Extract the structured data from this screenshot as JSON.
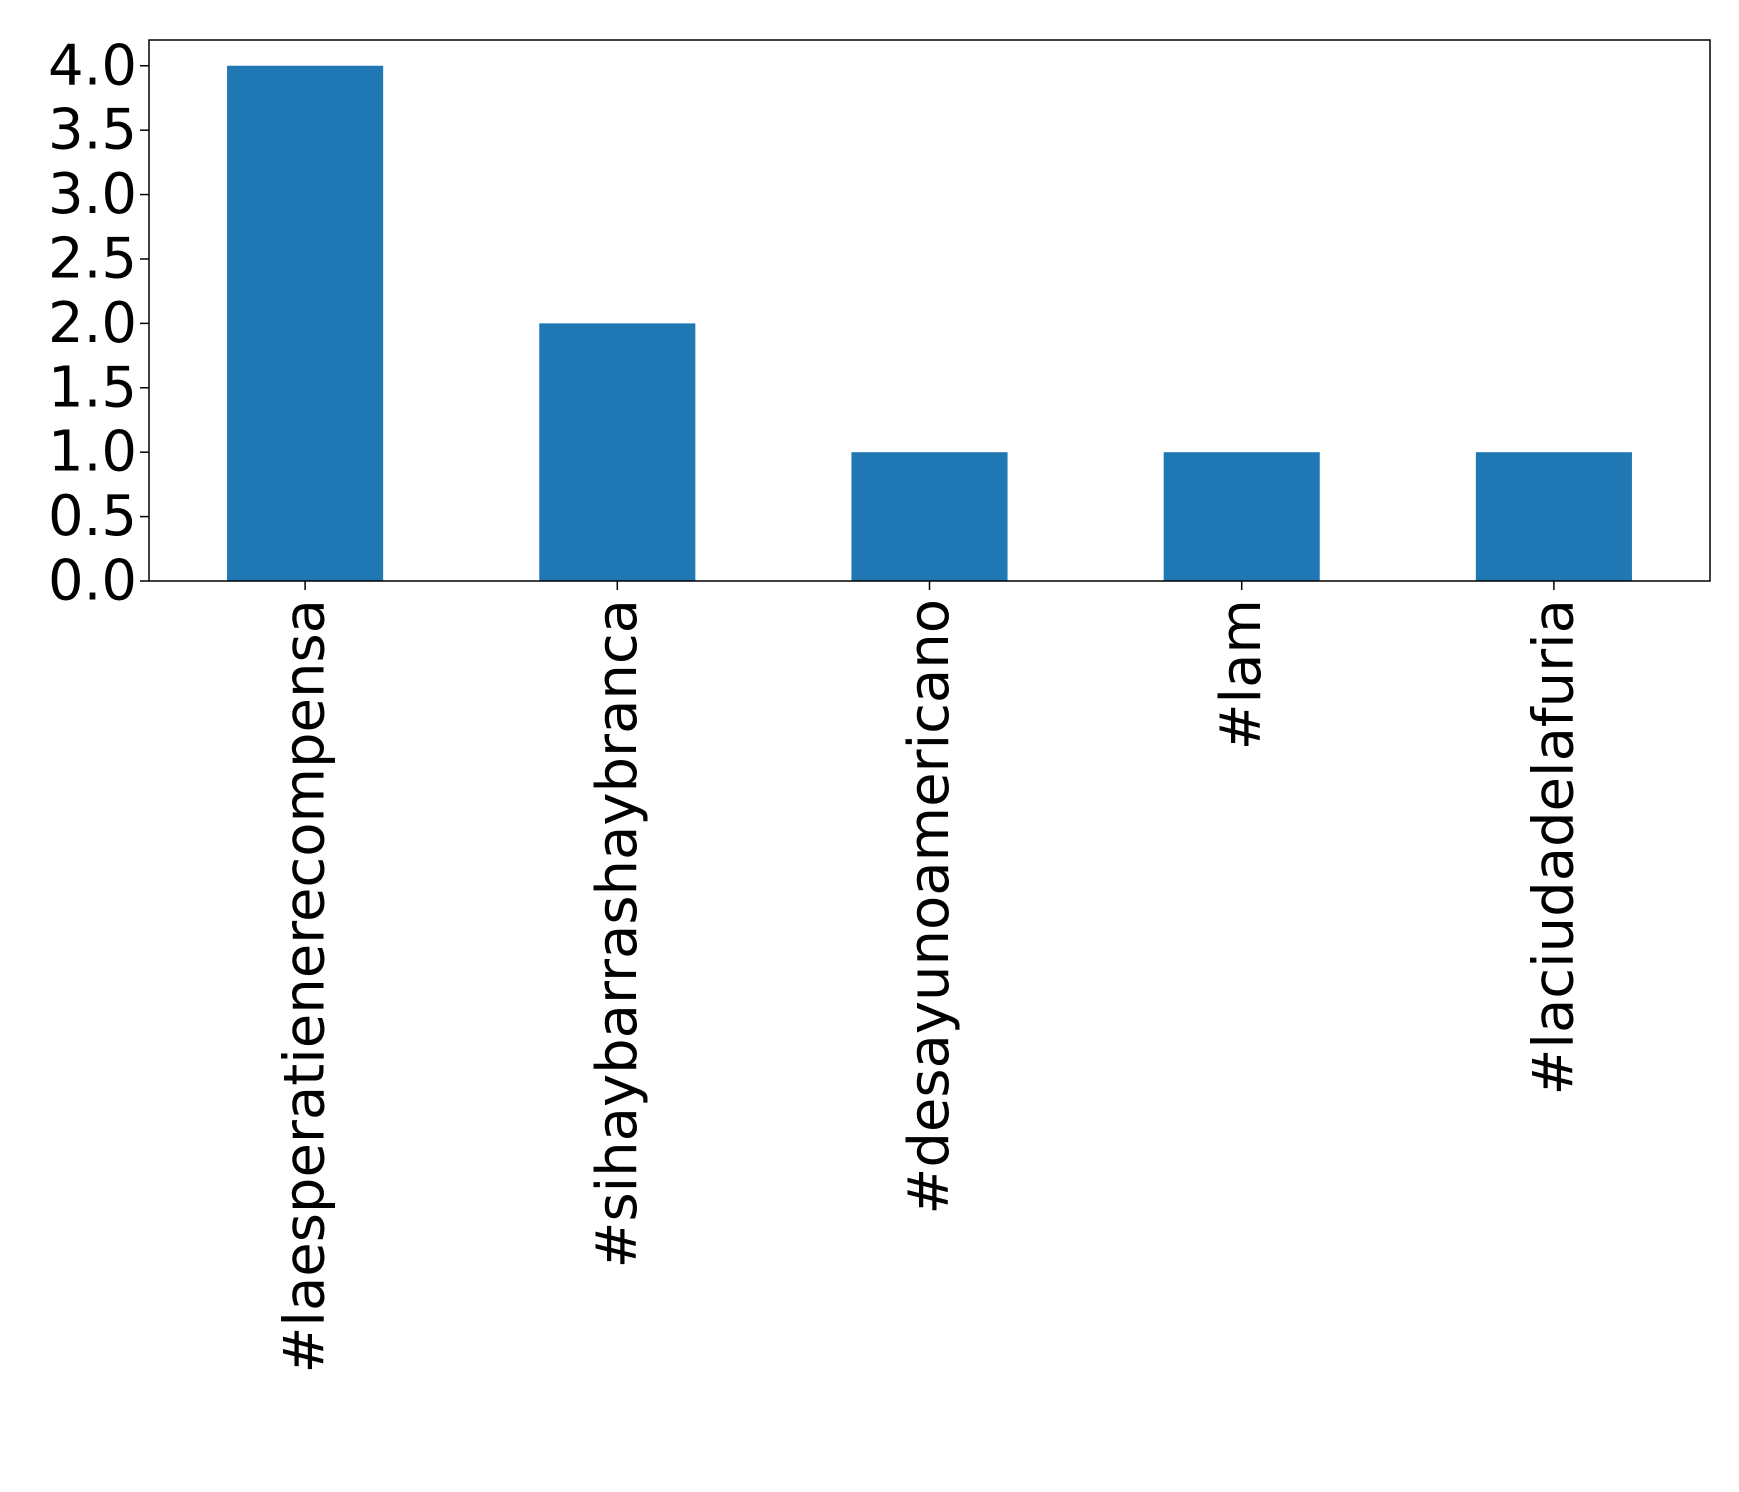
{
  "chart_data": {
    "type": "bar",
    "title": "",
    "xlabel": "",
    "ylabel": "",
    "categories": [
      "#laesperatienerecompensa",
      "#sihaybarrashaybranca",
      "#desayunoamericano",
      "#lam",
      "#laciudadelafuria"
    ],
    "values": [
      4,
      2,
      1,
      1,
      1
    ],
    "ylim": [
      0,
      4.2
    ],
    "yticks": [
      0.0,
      0.5,
      1.0,
      1.5,
      2.0,
      2.5,
      3.0,
      3.5,
      4.0
    ],
    "ytick_labels": [
      "0.0",
      "0.5",
      "1.0",
      "1.5",
      "2.0",
      "2.5",
      "3.0",
      "3.5",
      "4.0"
    ],
    "grid": false,
    "legend": "none",
    "x_tick_rotation": "vertical",
    "bar_color": "#1f77b4"
  }
}
